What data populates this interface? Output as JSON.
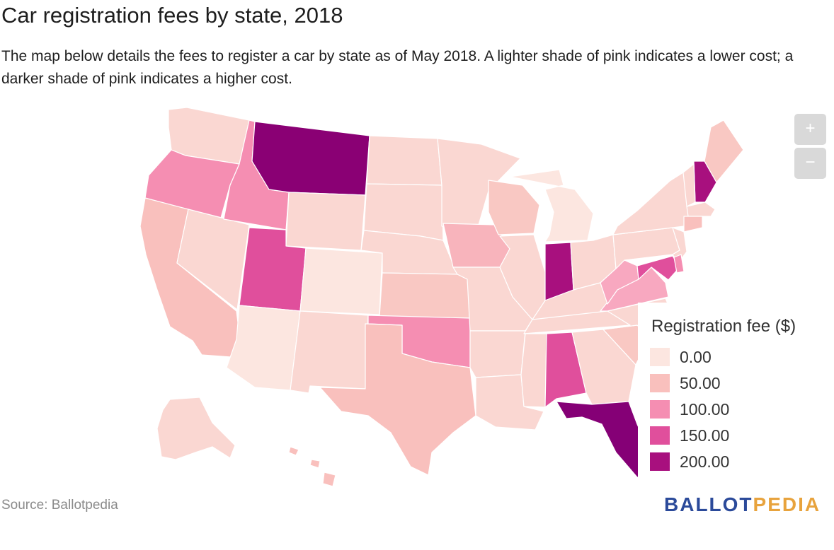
{
  "title": "Car registration fees by state, 2018",
  "description": "The map below details the fees to register a car by state as of May 2018. A lighter shade of pink indicates a lower cost; a darker shade of pink indicates a higher cost.",
  "zoom": {
    "in_label": "+",
    "out_label": "−"
  },
  "legend": {
    "title": "Registration fee ($)",
    "items": [
      {
        "label": "0.00",
        "color": "#fce6e0"
      },
      {
        "label": "50.00",
        "color": "#f9c0bd"
      },
      {
        "label": "100.00",
        "color": "#f58eb2"
      },
      {
        "label": "150.00",
        "color": "#e04f9c"
      },
      {
        "label": "200.00",
        "color": "#a8107e"
      }
    ]
  },
  "state_colors": {
    "WA": "#fad7d2",
    "OR": "#f58eb2",
    "CA": "#f9c0bd",
    "NV": "#fad7d2",
    "ID": "#f58eb2",
    "MT": "#8a0074",
    "WY": "#fad7d2",
    "UT": "#e04f9c",
    "AZ": "#fce6e0",
    "CO": "#fce6e0",
    "NM": "#fad7d2",
    "ND": "#fad7d2",
    "SD": "#fad7d2",
    "NE": "#fad7d2",
    "KS": "#f9c8c3",
    "OK": "#f58eb2",
    "TX": "#f9c0bd",
    "MN": "#fad7d2",
    "IA": "#f8b4bc",
    "MO": "#fad7d2",
    "AR": "#fad7d2",
    "LA": "#fad7d2",
    "WI": "#f9c8c3",
    "IL": "#fad7d2",
    "MI": "#fce6e0",
    "IN": "#a8107e",
    "OH": "#fad7d2",
    "KY": "#fad7d2",
    "TN": "#fad7d2",
    "MS": "#fad7d2",
    "AL": "#e04f9c",
    "GA": "#fad7d2",
    "FL": "#850076",
    "SC": "#f9c8c3",
    "NC": "#fad7d2",
    "VA": "#f8a8c0",
    "WV": "#f8a8c0",
    "PA": "#fad7d2",
    "NY": "#fad7d2",
    "ME": "#f9c8c3",
    "NH": "#a8107e",
    "VT": "#fad7d2",
    "MA": "#fad7d2",
    "CT": "#f9c0bd",
    "MD": "#e04f9c",
    "NJ": "#fad7d2",
    "DE": "#f58eb2",
    "AK": "#fad7d2",
    "HI": "#f9c0bd"
  },
  "source": "Source: Ballotpedia",
  "logo": {
    "part1": "BALLOT",
    "part2": "PEDIA"
  }
}
